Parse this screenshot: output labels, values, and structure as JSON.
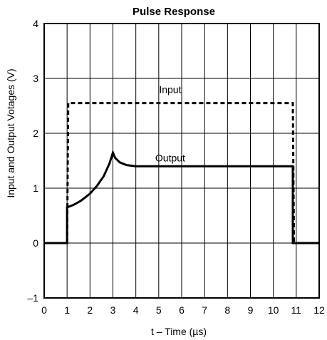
{
  "chart_data": {
    "type": "line",
    "title": "Pulse Response",
    "xlabel": "t – Time (µs)",
    "ylabel": "Input and Output Votages (V)",
    "xlim": [
      0,
      12
    ],
    "ylim": [
      -1,
      4
    ],
    "x_ticks": [
      0,
      1,
      2,
      3,
      4,
      5,
      6,
      7,
      8,
      9,
      10,
      11,
      12
    ],
    "x_tick_labels": [
      "0",
      "1",
      "2",
      "3",
      "4",
      "5",
      "6",
      "7",
      "8",
      "9",
      "10",
      "11",
      "12"
    ],
    "y_ticks": [
      -1,
      0,
      1,
      2,
      3,
      4
    ],
    "y_tick_labels": [
      "–1",
      "0",
      "1",
      "2",
      "3",
      "4"
    ],
    "grid": true,
    "series": [
      {
        "name": "Input",
        "style": "dashed",
        "color": "#000000",
        "x": [
          1.0,
          1.05,
          10.85,
          10.9
        ],
        "y": [
          0.0,
          2.55,
          2.55,
          0.0
        ]
      },
      {
        "name": "Output",
        "style": "solid",
        "color": "#000000",
        "x": [
          0.0,
          1.0,
          1.0,
          1.3,
          1.6,
          2.0,
          2.3,
          2.6,
          2.85,
          3.0,
          3.1,
          3.3,
          3.6,
          4.0,
          5.0,
          7.0,
          10.85,
          10.85,
          12.0
        ],
        "y": [
          0.0,
          0.0,
          0.65,
          0.7,
          0.77,
          0.9,
          1.04,
          1.22,
          1.45,
          1.65,
          1.55,
          1.47,
          1.42,
          1.4,
          1.4,
          1.4,
          1.4,
          0.0,
          0.0
        ]
      }
    ],
    "annotations": [
      {
        "text": "Input",
        "x": 5.5,
        "y": 2.8
      },
      {
        "text": "Output",
        "x": 5.5,
        "y": 1.55
      }
    ]
  }
}
